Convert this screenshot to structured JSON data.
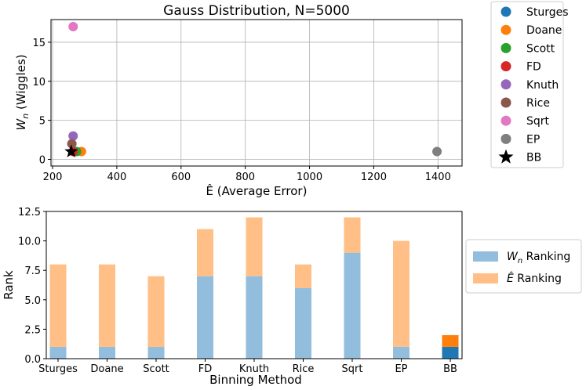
{
  "chart_data": [
    {
      "type": "scatter",
      "title": "Gauss Distribution, N=5000",
      "xlabel_prefix": "Ê",
      "xlabel_rest": " (Average Error)",
      "ylabel_main": "W",
      "ylabel_sub": "n",
      "ylabel_rest": " (Wiggles)",
      "xlim": [
        195,
        1475
      ],
      "ylim": [
        -0.85,
        17.9
      ],
      "xticks": [
        200,
        400,
        600,
        800,
        1000,
        1200,
        1400
      ],
      "yticks": [
        0,
        5,
        10,
        15
      ],
      "grid": true,
      "legend_position": "outside-right",
      "points": [
        {
          "name": "Sturges",
          "x": 268,
          "y": 1,
          "color": "#1f77b4",
          "marker": "circle"
        },
        {
          "name": "Doane",
          "x": 290,
          "y": 1,
          "color": "#ff7f0e",
          "marker": "circle"
        },
        {
          "name": "Scott",
          "x": 275,
          "y": 1,
          "color": "#2ca02c",
          "marker": "circle"
        },
        {
          "name": "FD",
          "x": 264,
          "y": 1,
          "color": "#d62728",
          "marker": "circle"
        },
        {
          "name": "Knuth",
          "x": 264,
          "y": 3,
          "color": "#9467bd",
          "marker": "circle"
        },
        {
          "name": "Rice",
          "x": 260,
          "y": 2,
          "color": "#8c564b",
          "marker": "circle"
        },
        {
          "name": "Sqrt",
          "x": 264,
          "y": 17,
          "color": "#e377c2",
          "marker": "circle"
        },
        {
          "name": "EP",
          "x": 1397,
          "y": 1,
          "color": "#7f7f7f",
          "marker": "circle"
        },
        {
          "name": "BB",
          "x": 258,
          "y": 1,
          "color": "#000000",
          "marker": "star"
        }
      ]
    },
    {
      "type": "bar",
      "stacked": true,
      "xlabel": "Binning Method",
      "ylabel": "Rank",
      "categories": [
        "Sturges",
        "Doane",
        "Scott",
        "FD",
        "Knuth",
        "Rice",
        "Sqrt",
        "EP",
        "BB"
      ],
      "ylim": [
        0,
        12.5
      ],
      "yticks": [
        "0.0",
        "2.5",
        "5.0",
        "7.5",
        "10.0",
        "12.5"
      ],
      "legend_position": "outside-right",
      "series": [
        {
          "name_main": "W",
          "name_sub": "n",
          "name_rest": " Ranking",
          "values": [
            1,
            1,
            1,
            7,
            7,
            6,
            9,
            1,
            1
          ],
          "color": "#92bddc",
          "highlight_color": "#1f77b4"
        },
        {
          "name_main": "Ê",
          "name_sub": "",
          "name_rest": " Ranking",
          "values": [
            7,
            7,
            6,
            4,
            5,
            2,
            3,
            9,
            1
          ],
          "color": "#ffbf86",
          "highlight_color": "#ff7f0e"
        }
      ],
      "highlight_category": "BB"
    }
  ]
}
